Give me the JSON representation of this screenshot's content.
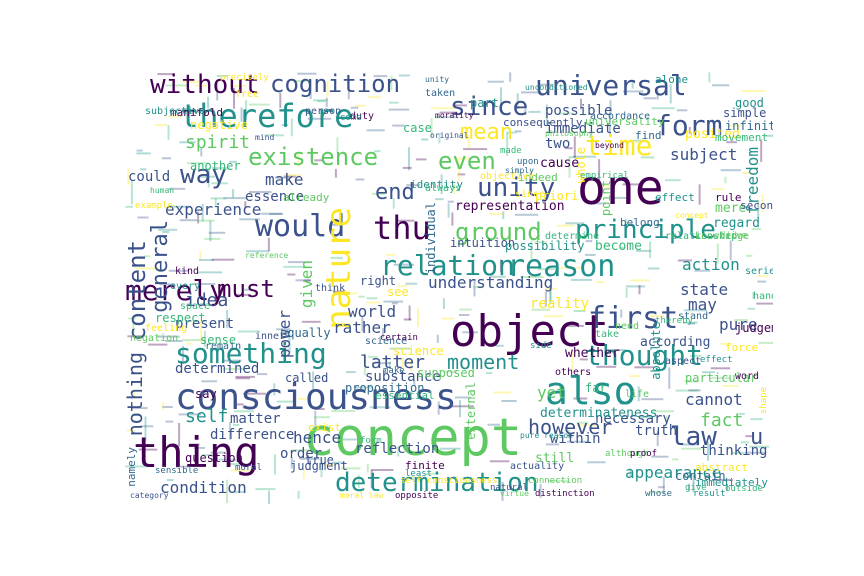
{
  "palette": {
    "purple": "#440154",
    "indigo": "#3b528b",
    "teal": "#21918c",
    "green": "#5ec962",
    "yellow": "#fde725",
    "blue": "#31688e",
    "mint": "#35b779"
  },
  "words": [
    "concept",
    "object",
    "thing",
    "consciousness",
    "one",
    "also",
    "would",
    "therefore",
    "relation",
    "reason",
    "nature",
    "determination",
    "universal",
    "since",
    "form",
    "something",
    "existence",
    "thu",
    "time",
    "principle",
    "ground",
    "unity",
    "merely",
    "without",
    "cognition",
    "mean",
    "even",
    "way",
    "end",
    "must",
    "first",
    "thought",
    "law",
    "content",
    "general",
    "nothing",
    "however",
    "moment",
    "self",
    "spirit",
    "hence",
    "fact",
    "understanding",
    "world",
    "latter",
    "rather",
    "appearance",
    "yet",
    "freedom",
    "subject",
    "given",
    "power",
    "experience",
    "make",
    "essence",
    "state",
    "action",
    "may",
    "possible",
    "immediate",
    "could",
    "idea",
    "condition",
    "reality",
    "determined",
    "cannot",
    "thinking",
    "within",
    "truth",
    "difference",
    "matter",
    "order",
    "reflection",
    "present",
    "sense",
    "particular",
    "substance",
    "pure",
    "necessary",
    "u",
    "part",
    "case",
    "two",
    "whole",
    "representation",
    "intuition",
    "individual",
    "possibility",
    "become",
    "point",
    "posited",
    "judgement",
    "according",
    "contain",
    "determinateness",
    "another",
    "still",
    "science",
    "whether",
    "called",
    "equally",
    "regard",
    "respect",
    "external",
    "priori",
    "cause",
    "simple",
    "infinite",
    "good",
    "movement",
    "mere",
    "abstract",
    "question",
    "true",
    "proposition",
    "absolute",
    "essential",
    "universality",
    "negative",
    "manifold",
    "consequently",
    "accordance",
    "alone",
    "determine",
    "indeed",
    "objective",
    "finite",
    "judgment",
    "namely",
    "immediately",
    "far",
    "supposed",
    "see",
    "say",
    "right",
    "belong",
    "identity",
    "always",
    "already",
    "free",
    "duty",
    "person",
    "taken",
    "subjective",
    "relationship",
    "knowledge",
    "force",
    "rule",
    "second",
    "find",
    "effect",
    "take",
    "need",
    "exist",
    "others",
    "inner",
    "science",
    "series",
    "hand",
    "life",
    "since",
    "kind",
    "think",
    "remain",
    "every",
    "space",
    "negation",
    "feeling",
    "word",
    "aspect",
    "stand",
    "unconditioned",
    "form",
    "virtue",
    "moral law",
    "distinction",
    "natural",
    "whose",
    "result",
    "outside",
    "connection",
    "self consciousness",
    "opposite",
    "moral",
    "sensible",
    "least",
    "give",
    "although",
    "shape",
    "proof",
    "category",
    "make",
    "effect",
    "empirical",
    "drive",
    "example",
    "certain",
    "actuality",
    "upon",
    "side",
    "thereby",
    "reference",
    "concept",
    "morality",
    "mind",
    "simply",
    "pure reason",
    "human",
    "philosophy",
    "precisely",
    "beyond",
    "original",
    "unity",
    "come",
    "made"
  ]
}
